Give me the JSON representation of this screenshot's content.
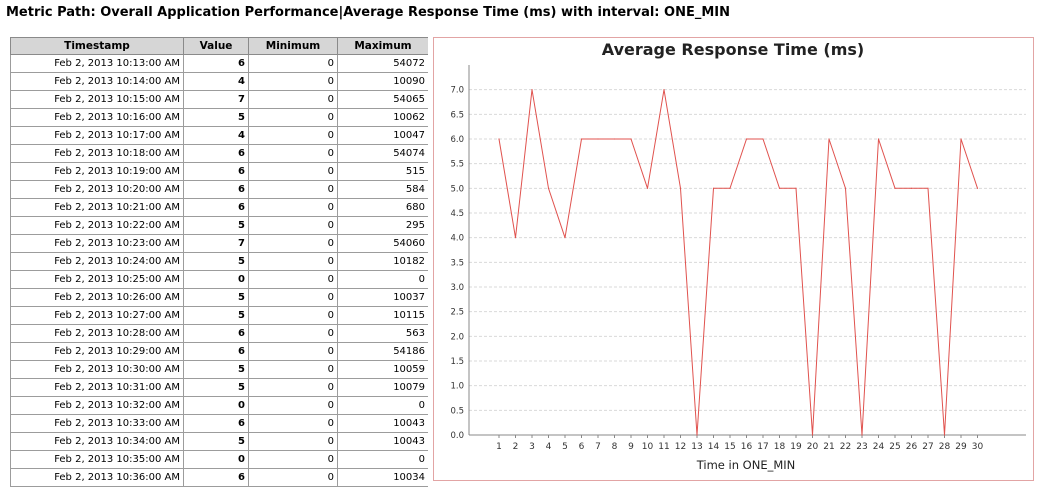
{
  "page": {
    "title": "Metric Path: Overall Application Performance|Average Response Time (ms) with interval: ONE_MIN"
  },
  "table": {
    "headers": [
      "Timestamp",
      "Value",
      "Minimum",
      "Maximum"
    ],
    "rows": [
      {
        "timestamp": "Feb 2, 2013 10:13:00 AM",
        "value": "6",
        "minimum": "0",
        "maximum": "54072"
      },
      {
        "timestamp": "Feb 2, 2013 10:14:00 AM",
        "value": "4",
        "minimum": "0",
        "maximum": "10090"
      },
      {
        "timestamp": "Feb 2, 2013 10:15:00 AM",
        "value": "7",
        "minimum": "0",
        "maximum": "54065"
      },
      {
        "timestamp": "Feb 2, 2013 10:16:00 AM",
        "value": "5",
        "minimum": "0",
        "maximum": "10062"
      },
      {
        "timestamp": "Feb 2, 2013 10:17:00 AM",
        "value": "4",
        "minimum": "0",
        "maximum": "10047"
      },
      {
        "timestamp": "Feb 2, 2013 10:18:00 AM",
        "value": "6",
        "minimum": "0",
        "maximum": "54074"
      },
      {
        "timestamp": "Feb 2, 2013 10:19:00 AM",
        "value": "6",
        "minimum": "0",
        "maximum": "515"
      },
      {
        "timestamp": "Feb 2, 2013 10:20:00 AM",
        "value": "6",
        "minimum": "0",
        "maximum": "584"
      },
      {
        "timestamp": "Feb 2, 2013 10:21:00 AM",
        "value": "6",
        "minimum": "0",
        "maximum": "680"
      },
      {
        "timestamp": "Feb 2, 2013 10:22:00 AM",
        "value": "5",
        "minimum": "0",
        "maximum": "295"
      },
      {
        "timestamp": "Feb 2, 2013 10:23:00 AM",
        "value": "7",
        "minimum": "0",
        "maximum": "54060"
      },
      {
        "timestamp": "Feb 2, 2013 10:24:00 AM",
        "value": "5",
        "minimum": "0",
        "maximum": "10182"
      },
      {
        "timestamp": "Feb 2, 2013 10:25:00 AM",
        "value": "0",
        "minimum": "0",
        "maximum": "0"
      },
      {
        "timestamp": "Feb 2, 2013 10:26:00 AM",
        "value": "5",
        "minimum": "0",
        "maximum": "10037"
      },
      {
        "timestamp": "Feb 2, 2013 10:27:00 AM",
        "value": "5",
        "minimum": "0",
        "maximum": "10115"
      },
      {
        "timestamp": "Feb 2, 2013 10:28:00 AM",
        "value": "6",
        "minimum": "0",
        "maximum": "563"
      },
      {
        "timestamp": "Feb 2, 2013 10:29:00 AM",
        "value": "6",
        "minimum": "0",
        "maximum": "54186"
      },
      {
        "timestamp": "Feb 2, 2013 10:30:00 AM",
        "value": "5",
        "minimum": "0",
        "maximum": "10059"
      },
      {
        "timestamp": "Feb 2, 2013 10:31:00 AM",
        "value": "5",
        "minimum": "0",
        "maximum": "10079"
      },
      {
        "timestamp": "Feb 2, 2013 10:32:00 AM",
        "value": "0",
        "minimum": "0",
        "maximum": "0"
      },
      {
        "timestamp": "Feb 2, 2013 10:33:00 AM",
        "value": "6",
        "minimum": "0",
        "maximum": "10043"
      },
      {
        "timestamp": "Feb 2, 2013 10:34:00 AM",
        "value": "5",
        "minimum": "0",
        "maximum": "10043"
      },
      {
        "timestamp": "Feb 2, 2013 10:35:00 AM",
        "value": "0",
        "minimum": "0",
        "maximum": "0"
      },
      {
        "timestamp": "Feb 2, 2013 10:36:00 AM",
        "value": "6",
        "minimum": "0",
        "maximum": "10034"
      }
    ]
  },
  "chart_data": {
    "type": "line",
    "title": "Average Response Time (ms)",
    "xlabel": "Time in ONE_MIN",
    "ylabel": "",
    "x": [
      1,
      2,
      3,
      4,
      5,
      6,
      7,
      8,
      9,
      10,
      11,
      12,
      13,
      14,
      15,
      16,
      17,
      18,
      19,
      20,
      21,
      22,
      23,
      24,
      25,
      26,
      27,
      28,
      29,
      30
    ],
    "series": [
      {
        "values": [
          6,
          4,
          7,
          5,
          4,
          6,
          6,
          6,
          6,
          5,
          7,
          5,
          0,
          5,
          5,
          6,
          6,
          5,
          5,
          0,
          6,
          5,
          0,
          6,
          5,
          5,
          5,
          0,
          6,
          5
        ],
        "color": "#e0524e"
      }
    ],
    "ylim": [
      0,
      7.5
    ],
    "yticks": [
      "0.0",
      "0.5",
      "1.0",
      "1.5",
      "2.0",
      "2.5",
      "3.0",
      "3.5",
      "4.0",
      "4.5",
      "5.0",
      "5.5",
      "6.0",
      "6.5",
      "7.0"
    ],
    "grid": true,
    "gridColor": "#d9d9d9",
    "axisColor": "#888888"
  }
}
